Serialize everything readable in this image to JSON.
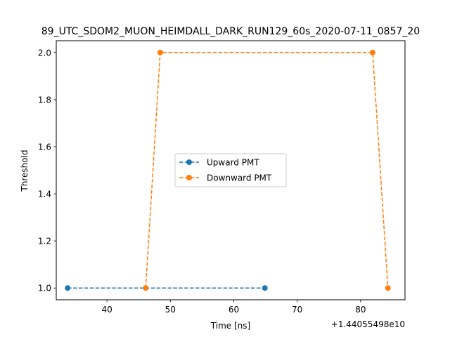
{
  "chart_data": {
    "type": "line",
    "title": "89_UTC_SDOM2_MUON_HEIMDALL_DARK_RUN129_60s_2020-07-11_0857_20",
    "xlabel": "Time [ns]",
    "ylabel": "Threshold",
    "x_offset_label": "+1.44055498e10",
    "xlim": [
      32,
      87
    ],
    "ylim": [
      0.95,
      2.05
    ],
    "x_ticks": [
      40,
      50,
      60,
      70,
      80
    ],
    "y_ticks": [
      1.0,
      1.2,
      1.4,
      1.6,
      1.8,
      2.0
    ],
    "y_tick_labels": [
      "1.0",
      "1.2",
      "1.4",
      "1.6",
      "1.8",
      "2.0"
    ],
    "grid": false,
    "legend_position": "center",
    "series": [
      {
        "name": "Upward PMT",
        "color": "#1f77b4",
        "line_style": "dashed",
        "marker": "circle",
        "points": [
          [
            33.8,
            1.0
          ],
          [
            64.9,
            1.0
          ]
        ]
      },
      {
        "name": "Downward PMT",
        "color": "#ff7f0e",
        "line_style": "dashed",
        "marker": "circle",
        "points": [
          [
            46.1,
            1.0
          ],
          [
            48.4,
            2.0
          ],
          [
            81.9,
            2.0
          ],
          [
            84.3,
            1.0
          ]
        ]
      }
    ]
  }
}
